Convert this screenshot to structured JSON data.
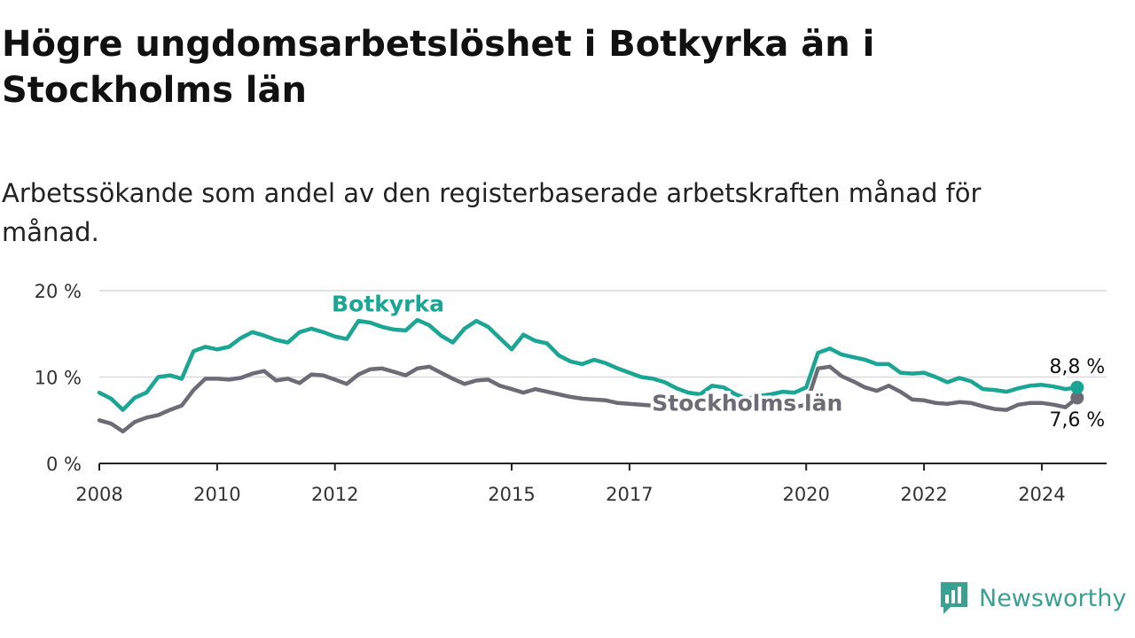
{
  "title": "Högre ungdomsarbetslöshet i Botkyrka än i Stockholms län",
  "subtitle": "Arbetssökande som andel av den registerbaserade arbetskraften månad för månad.",
  "brand": {
    "name": "Newsworthy",
    "color": "#3aa092"
  },
  "colors": {
    "grid": "#d9d9d9",
    "axis": "#222222",
    "tick_text": "#333333"
  },
  "chart_data": {
    "type": "line",
    "title": "Högre ungdomsarbetslöshet i Botkyrka än i Stockholms län",
    "subtitle": "Arbetssökande som andel av den registerbaserade arbetskraften månad för månad.",
    "xlabel": "",
    "ylabel": "",
    "xlim": [
      2008,
      2025.1
    ],
    "ylim": [
      0,
      20
    ],
    "grid": true,
    "x_ticks": [
      {
        "value": 2008,
        "label": "2008"
      },
      {
        "value": 2010,
        "label": "2010"
      },
      {
        "value": 2012,
        "label": "2012"
      },
      {
        "value": 2015,
        "label": "2015"
      },
      {
        "value": 2017,
        "label": "2017"
      },
      {
        "value": 2020,
        "label": "2020"
      },
      {
        "value": 2022,
        "label": "2022"
      },
      {
        "value": 2024,
        "label": "2024"
      }
    ],
    "y_ticks": [
      {
        "value": 0,
        "label": "0 %"
      },
      {
        "value": 10,
        "label": "10 %"
      },
      {
        "value": 20,
        "label": "20 %"
      }
    ],
    "series": [
      {
        "name": "Botkyrka",
        "color": "#1aa595",
        "end_label": "8,8 %",
        "x": [
          2008.0,
          2008.2,
          2008.4,
          2008.6,
          2008.8,
          2009.0,
          2009.2,
          2009.4,
          2009.6,
          2009.8,
          2010.0,
          2010.2,
          2010.4,
          2010.6,
          2010.8,
          2011.0,
          2011.2,
          2011.4,
          2011.6,
          2011.8,
          2012.0,
          2012.2,
          2012.4,
          2012.6,
          2012.8,
          2013.0,
          2013.2,
          2013.4,
          2013.6,
          2013.8,
          2014.0,
          2014.2,
          2014.4,
          2014.6,
          2014.8,
          2015.0,
          2015.2,
          2015.4,
          2015.6,
          2015.8,
          2016.0,
          2016.2,
          2016.4,
          2016.6,
          2016.8,
          2017.0,
          2017.2,
          2017.4,
          2017.6,
          2017.8,
          2018.0,
          2018.2,
          2018.4,
          2018.6,
          2018.8,
          2019.0,
          2019.2,
          2019.4,
          2019.6,
          2019.8,
          2020.0,
          2020.2,
          2020.4,
          2020.6,
          2020.8,
          2021.0,
          2021.2,
          2021.4,
          2021.6,
          2021.8,
          2022.0,
          2022.2,
          2022.4,
          2022.6,
          2022.8,
          2023.0,
          2023.2,
          2023.4,
          2023.6,
          2023.8,
          2024.0,
          2024.2,
          2024.4,
          2024.6
        ],
        "y": [
          8.2,
          7.5,
          6.2,
          7.6,
          8.2,
          10.0,
          10.2,
          9.8,
          13.0,
          13.5,
          13.2,
          13.5,
          14.5,
          15.2,
          14.8,
          14.3,
          14.0,
          15.2,
          15.6,
          15.2,
          14.7,
          14.4,
          16.5,
          16.3,
          15.8,
          15.5,
          15.4,
          16.6,
          16.0,
          14.8,
          14.0,
          15.6,
          16.5,
          15.8,
          14.5,
          13.2,
          14.9,
          14.2,
          13.9,
          12.5,
          11.8,
          11.5,
          12.0,
          11.6,
          11.0,
          10.5,
          10.0,
          9.8,
          9.4,
          8.7,
          8.2,
          8.0,
          9.0,
          8.8,
          8.0,
          7.5,
          7.8,
          8.0,
          8.3,
          8.2,
          8.8,
          12.8,
          13.3,
          12.6,
          12.3,
          12.0,
          11.5,
          11.5,
          10.5,
          10.4,
          10.5,
          10.0,
          9.4,
          9.9,
          9.5,
          8.6,
          8.5,
          8.3,
          8.7,
          9.0,
          9.1,
          8.9,
          8.6,
          8.8
        ]
      },
      {
        "name": "Stockholms län",
        "color": "#6d6b75",
        "end_label": "7,6 %",
        "x": [
          2008.0,
          2008.2,
          2008.4,
          2008.6,
          2008.8,
          2009.0,
          2009.2,
          2009.4,
          2009.6,
          2009.8,
          2010.0,
          2010.2,
          2010.4,
          2010.6,
          2010.8,
          2011.0,
          2011.2,
          2011.4,
          2011.6,
          2011.8,
          2012.0,
          2012.2,
          2012.4,
          2012.6,
          2012.8,
          2013.0,
          2013.2,
          2013.4,
          2013.6,
          2013.8,
          2014.0,
          2014.2,
          2014.4,
          2014.6,
          2014.8,
          2015.0,
          2015.2,
          2015.4,
          2015.6,
          2015.8,
          2016.0,
          2016.2,
          2016.4,
          2016.6,
          2016.8,
          2017.0,
          2017.2,
          2017.4,
          2017.6,
          2017.8,
          2018.0,
          2018.2,
          2018.4,
          2018.6,
          2018.8,
          2019.0,
          2019.2,
          2019.4,
          2019.6,
          2019.8,
          2020.0,
          2020.2,
          2020.4,
          2020.6,
          2020.8,
          2021.0,
          2021.2,
          2021.4,
          2021.6,
          2021.8,
          2022.0,
          2022.2,
          2022.4,
          2022.6,
          2022.8,
          2023.0,
          2023.2,
          2023.4,
          2023.6,
          2023.8,
          2024.0,
          2024.2,
          2024.4,
          2024.6
        ],
        "y": [
          5.0,
          4.6,
          3.7,
          4.8,
          5.3,
          5.6,
          6.2,
          6.7,
          8.5,
          9.8,
          9.8,
          9.7,
          9.9,
          10.4,
          10.7,
          9.6,
          9.8,
          9.3,
          10.3,
          10.2,
          9.7,
          9.2,
          10.3,
          10.9,
          11.0,
          10.6,
          10.2,
          11.0,
          11.2,
          10.5,
          9.8,
          9.2,
          9.6,
          9.7,
          9.0,
          8.6,
          8.2,
          8.6,
          8.3,
          8.0,
          7.7,
          7.5,
          7.4,
          7.3,
          7.0,
          6.9,
          6.8,
          6.7,
          6.6,
          6.5,
          6.4,
          6.3,
          6.3,
          6.3,
          6.2,
          6.2,
          6.2,
          6.2,
          6.3,
          6.5,
          6.8,
          11.0,
          11.2,
          10.1,
          9.5,
          8.8,
          8.4,
          9.0,
          8.3,
          7.4,
          7.3,
          7.0,
          6.9,
          7.1,
          7.0,
          6.6,
          6.3,
          6.2,
          6.8,
          7.0,
          7.0,
          6.8,
          6.5,
          7.6
        ]
      }
    ],
    "annotations": [
      {
        "text": "Botkyrka",
        "series": "Botkyrka",
        "x": 2012.9,
        "y": 17.6
      },
      {
        "text": "Stockholms län",
        "series": "Stockholms län",
        "x": 2019.0,
        "y": 6.1
      }
    ]
  }
}
